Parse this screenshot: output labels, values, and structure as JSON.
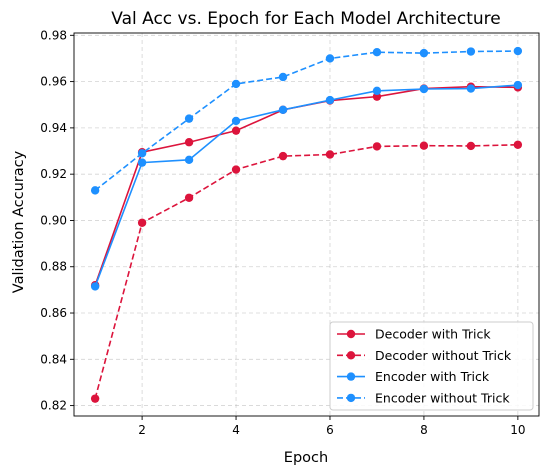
{
  "chart_data": {
    "type": "line",
    "title": "Val Acc vs. Epoch for Each Model Architecture",
    "xlabel": "Epoch",
    "ylabel": "Validation Accuracy",
    "xlim": [
      0.55,
      10.45
    ],
    "ylim": [
      0.8155,
      0.981
    ],
    "x_ticks": [
      2,
      4,
      6,
      8,
      10
    ],
    "y_ticks": [
      0.82,
      0.84,
      0.86,
      0.88,
      0.9,
      0.92,
      0.94,
      0.96,
      0.98
    ],
    "x_tick_labels": [
      "2",
      "4",
      "6",
      "8",
      "10"
    ],
    "y_tick_labels": [
      "0.82",
      "0.84",
      "0.86",
      "0.88",
      "0.90",
      "0.92",
      "0.94",
      "0.96",
      "0.98"
    ],
    "grid": true,
    "legend_position": "lower-right",
    "x": [
      1,
      2,
      3,
      4,
      5,
      6,
      7,
      8,
      9,
      10
    ],
    "series": [
      {
        "name": "Decoder with Trick",
        "color": "#dc143c",
        "dashed": false,
        "values": [
          0.872,
          0.9295,
          0.9338,
          0.9388,
          0.9478,
          0.9518,
          0.9535,
          0.957,
          0.9578,
          0.9575
        ]
      },
      {
        "name": "Decoder without Trick",
        "color": "#dc143c",
        "dashed": true,
        "values": [
          0.823,
          0.899,
          0.9098,
          0.922,
          0.9278,
          0.9285,
          0.932,
          0.9323,
          0.9322,
          0.9327
        ]
      },
      {
        "name": "Encoder with Trick",
        "color": "#1e90ff",
        "dashed": false,
        "values": [
          0.8715,
          0.925,
          0.9262,
          0.943,
          0.9478,
          0.952,
          0.956,
          0.9568,
          0.957,
          0.9585
        ]
      },
      {
        "name": "Encoder without Trick",
        "color": "#1e90ff",
        "dashed": true,
        "values": [
          0.913,
          0.929,
          0.944,
          0.959,
          0.962,
          0.97,
          0.9727,
          0.9723,
          0.973,
          0.9732
        ]
      }
    ]
  }
}
